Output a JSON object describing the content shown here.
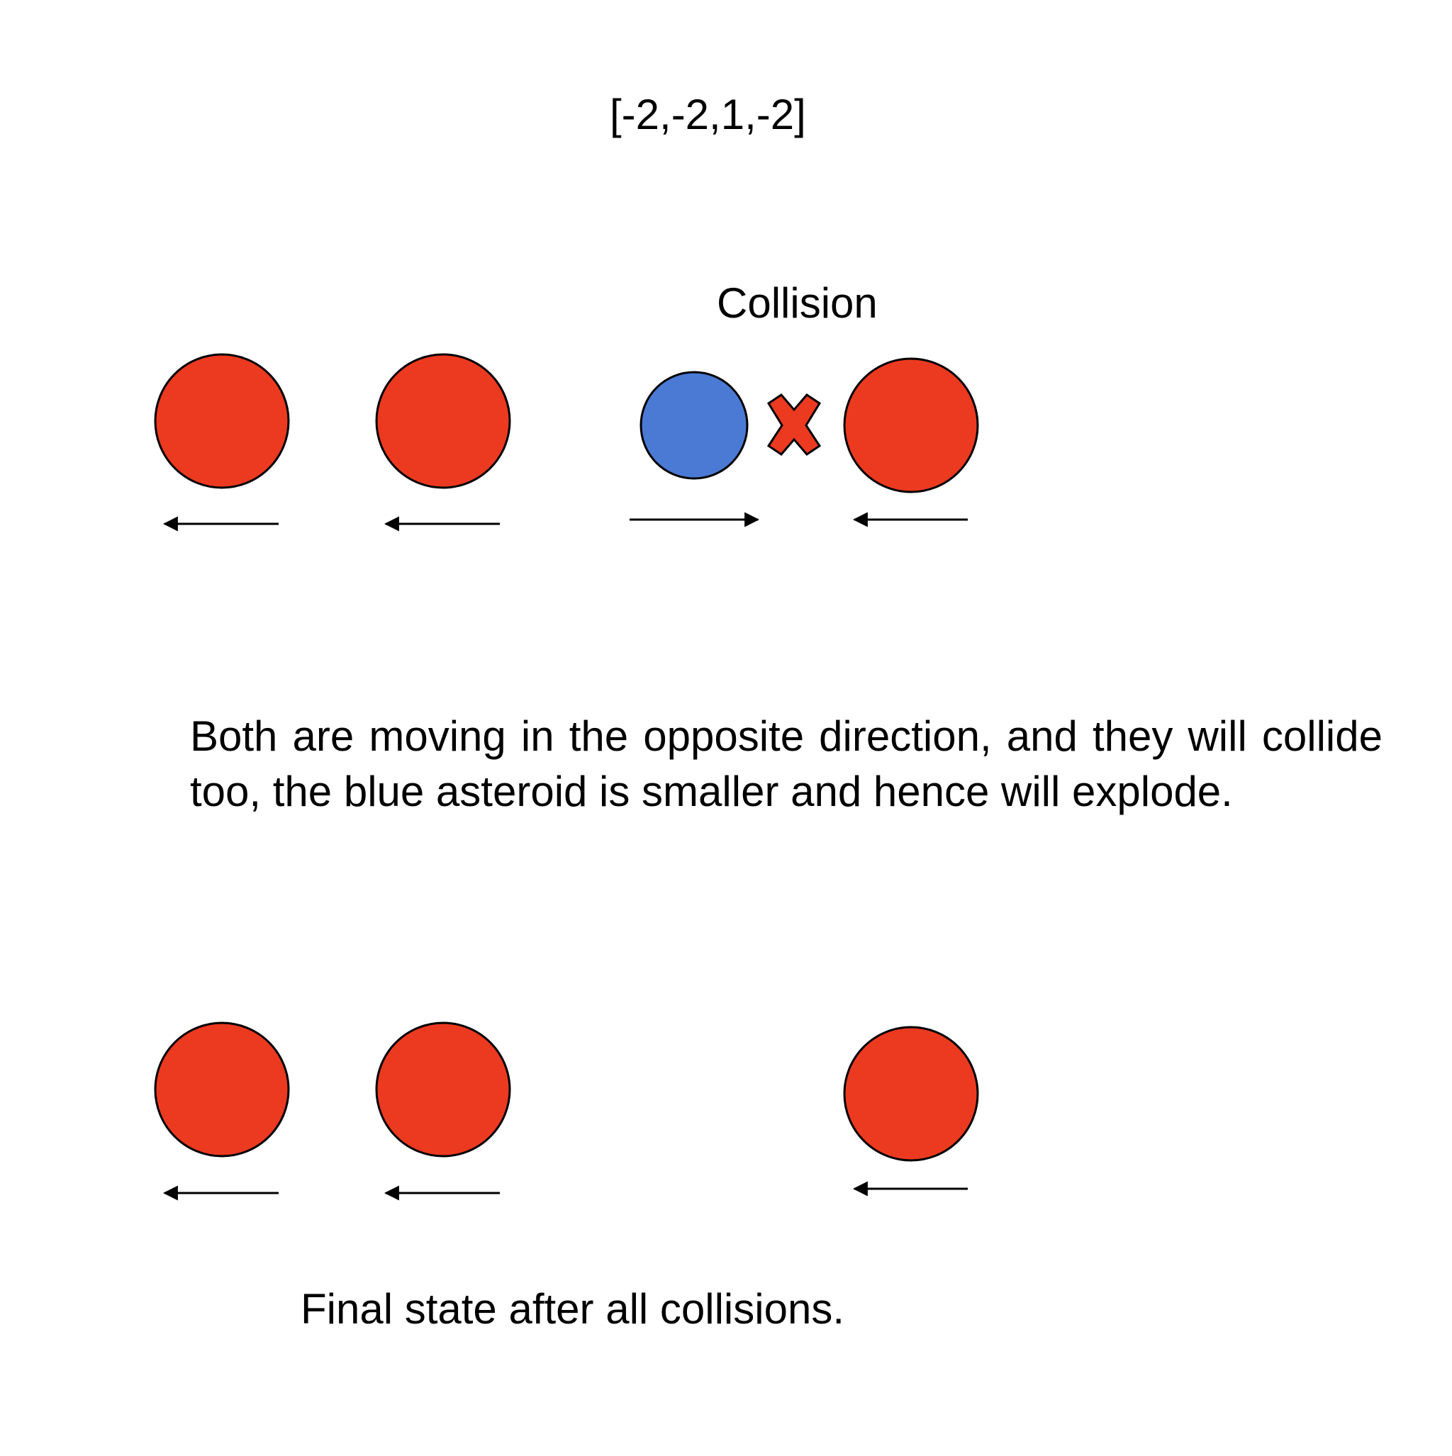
{
  "title": "[-2,-2,1,-2]",
  "collision_label": "Collision",
  "explanation": "Both are moving in the opposite direction,  and they will collide too, the blue asteroid is smaller and hence will explode.",
  "caption": "Final state after all collisions.",
  "colors": {
    "large_asteroid": "#EC3A20",
    "small_asteroid": "#4A7AD3",
    "explosion_marker": "#EC3A20",
    "outline": "#000000",
    "text": "#000000"
  },
  "stages": [
    {
      "name": "collision-stage",
      "asteroids": [
        {
          "size": "large",
          "direction": "left"
        },
        {
          "size": "large",
          "direction": "left"
        },
        {
          "size": "small",
          "direction": "right"
        },
        {
          "size": "large",
          "direction": "left"
        }
      ],
      "explosion_marker": "x-icon"
    },
    {
      "name": "final-stage",
      "asteroids": [
        {
          "size": "large",
          "direction": "left"
        },
        {
          "size": "large",
          "direction": "left"
        },
        {
          "size": "large",
          "direction": "left"
        }
      ]
    }
  ]
}
